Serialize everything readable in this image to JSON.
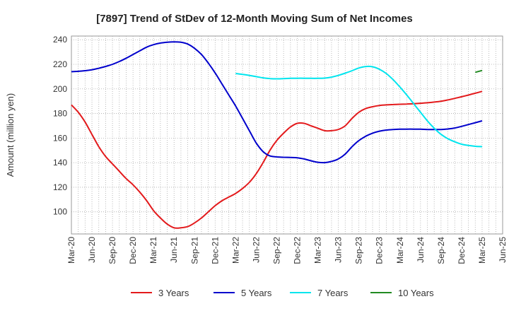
{
  "chart_data": {
    "type": "line",
    "title": "[7897]  Trend of StDev of 12-Month Moving Sum of Net Incomes",
    "xlabel": "",
    "ylabel": "Amount (million yen)",
    "ylim": [
      82,
      243
    ],
    "yticks": [
      100,
      120,
      140,
      160,
      180,
      200,
      220,
      240
    ],
    "xlim": [
      "2020-03",
      "2025-06"
    ],
    "xtick_labels": [
      "Mar-20",
      "Jun-20",
      "Sep-20",
      "Dec-20",
      "Mar-21",
      "Jun-21",
      "Sep-21",
      "Dec-21",
      "Mar-22",
      "Jun-22",
      "Sep-22",
      "Dec-22",
      "Mar-23",
      "Jun-23",
      "Sep-23",
      "Dec-23",
      "Mar-24",
      "Jun-24",
      "Sep-24",
      "Dec-24",
      "Mar-25",
      "Jun-25"
    ],
    "grid": true,
    "legend_position": "bottom",
    "series": [
      {
        "name": "3 Years",
        "color": "#e31a1c",
        "points": [
          [
            "2020-03",
            187
          ],
          [
            "2020-04",
            181
          ],
          [
            "2020-05",
            173
          ],
          [
            "2020-06",
            163
          ],
          [
            "2020-07",
            153
          ],
          [
            "2020-08",
            145
          ],
          [
            "2020-09",
            139
          ],
          [
            "2020-10",
            133
          ],
          [
            "2020-11",
            127
          ],
          [
            "2020-12",
            122
          ],
          [
            "2021-01",
            116
          ],
          [
            "2021-02",
            109
          ],
          [
            "2021-03",
            101
          ],
          [
            "2021-04",
            95
          ],
          [
            "2021-05",
            90
          ],
          [
            "2021-06",
            87
          ],
          [
            "2021-07",
            87
          ],
          [
            "2021-08",
            88
          ],
          [
            "2021-09",
            91
          ],
          [
            "2021-10",
            95
          ],
          [
            "2021-11",
            100
          ],
          [
            "2021-12",
            105
          ],
          [
            "2022-01",
            109
          ],
          [
            "2022-02",
            112
          ],
          [
            "2022-03",
            115
          ],
          [
            "2022-04",
            119
          ],
          [
            "2022-05",
            124
          ],
          [
            "2022-06",
            131
          ],
          [
            "2022-07",
            140
          ],
          [
            "2022-08",
            150
          ],
          [
            "2022-09",
            158
          ],
          [
            "2022-10",
            164
          ],
          [
            "2022-11",
            169
          ],
          [
            "2022-12",
            172
          ],
          [
            "2023-01",
            172
          ],
          [
            "2023-02",
            170
          ],
          [
            "2023-03",
            168
          ],
          [
            "2023-04",
            166
          ],
          [
            "2023-05",
            166
          ],
          [
            "2023-06",
            167
          ],
          [
            "2023-07",
            170
          ],
          [
            "2023-08",
            176
          ],
          [
            "2023-09",
            181
          ],
          [
            "2023-10",
            184
          ],
          [
            "2023-11",
            185.5
          ],
          [
            "2023-12",
            186.5
          ],
          [
            "2024-01",
            187
          ],
          [
            "2024-02",
            187.3
          ],
          [
            "2024-03",
            187.5
          ],
          [
            "2024-04",
            187.7
          ],
          [
            "2024-05",
            188
          ],
          [
            "2024-06",
            188.3
          ],
          [
            "2024-07",
            188.7
          ],
          [
            "2024-08",
            189.3
          ],
          [
            "2024-09",
            190
          ],
          [
            "2024-10",
            191
          ],
          [
            "2024-11",
            192.3
          ],
          [
            "2024-12",
            193.6
          ],
          [
            "2025-01",
            195
          ],
          [
            "2025-02",
            196.5
          ],
          [
            "2025-03",
            198
          ]
        ]
      },
      {
        "name": "5 Years",
        "color": "#0000cc",
        "points": [
          [
            "2020-03",
            214
          ],
          [
            "2020-04",
            214.3
          ],
          [
            "2020-05",
            214.8
          ],
          [
            "2020-06",
            215.6
          ],
          [
            "2020-07",
            216.8
          ],
          [
            "2020-08",
            218.3
          ],
          [
            "2020-09",
            220
          ],
          [
            "2020-10",
            222.3
          ],
          [
            "2020-11",
            225
          ],
          [
            "2020-12",
            228
          ],
          [
            "2021-01",
            231
          ],
          [
            "2021-02",
            234
          ],
          [
            "2021-03",
            236
          ],
          [
            "2021-04",
            237.3
          ],
          [
            "2021-05",
            238
          ],
          [
            "2021-06",
            238.3
          ],
          [
            "2021-07",
            238
          ],
          [
            "2021-08",
            236.5
          ],
          [
            "2021-09",
            233
          ],
          [
            "2021-10",
            228
          ],
          [
            "2021-11",
            221
          ],
          [
            "2021-12",
            213
          ],
          [
            "2022-01",
            204
          ],
          [
            "2022-02",
            195
          ],
          [
            "2022-03",
            186
          ],
          [
            "2022-04",
            176
          ],
          [
            "2022-05",
            166
          ],
          [
            "2022-06",
            156
          ],
          [
            "2022-07",
            149
          ],
          [
            "2022-08",
            145.5
          ],
          [
            "2022-09",
            144.7
          ],
          [
            "2022-10",
            144.4
          ],
          [
            "2022-11",
            144.2
          ],
          [
            "2022-12",
            144
          ],
          [
            "2023-01",
            143
          ],
          [
            "2023-02",
            141.5
          ],
          [
            "2023-03",
            140.3
          ],
          [
            "2023-04",
            140
          ],
          [
            "2023-05",
            141
          ],
          [
            "2023-06",
            143
          ],
          [
            "2023-07",
            147
          ],
          [
            "2023-08",
            153
          ],
          [
            "2023-09",
            158
          ],
          [
            "2023-10",
            161.5
          ],
          [
            "2023-11",
            164
          ],
          [
            "2023-12",
            165.6
          ],
          [
            "2024-01",
            166.5
          ],
          [
            "2024-02",
            167
          ],
          [
            "2024-03",
            167.2
          ],
          [
            "2024-04",
            167.3
          ],
          [
            "2024-05",
            167.3
          ],
          [
            "2024-06",
            167.2
          ],
          [
            "2024-07",
            167
          ],
          [
            "2024-08",
            167
          ],
          [
            "2024-09",
            167
          ],
          [
            "2024-10",
            167.4
          ],
          [
            "2024-11",
            168.2
          ],
          [
            "2024-12",
            169.5
          ],
          [
            "2025-01",
            171
          ],
          [
            "2025-02",
            172.5
          ],
          [
            "2025-03",
            174
          ]
        ]
      },
      {
        "name": "7 Years",
        "color": "#00e5ee",
        "points": [
          [
            "2022-03",
            212.5
          ],
          [
            "2022-04",
            211.8
          ],
          [
            "2022-05",
            211
          ],
          [
            "2022-06",
            210
          ],
          [
            "2022-07",
            209
          ],
          [
            "2022-08",
            208.4
          ],
          [
            "2022-09",
            208.2
          ],
          [
            "2022-10",
            208.4
          ],
          [
            "2022-11",
            208.6
          ],
          [
            "2022-12",
            208.7
          ],
          [
            "2023-01",
            208.7
          ],
          [
            "2023-02",
            208.6
          ],
          [
            "2023-03",
            208.6
          ],
          [
            "2023-04",
            208.8
          ],
          [
            "2023-05",
            209.6
          ],
          [
            "2023-06",
            211
          ],
          [
            "2023-07",
            212.8
          ],
          [
            "2023-08",
            214.8
          ],
          [
            "2023-09",
            217
          ],
          [
            "2023-10",
            218.2
          ],
          [
            "2023-11",
            218
          ],
          [
            "2023-12",
            216
          ],
          [
            "2024-01",
            212.5
          ],
          [
            "2024-02",
            207.5
          ],
          [
            "2024-03",
            201.5
          ],
          [
            "2024-04",
            195
          ],
          [
            "2024-05",
            188
          ],
          [
            "2024-06",
            181
          ],
          [
            "2024-07",
            174
          ],
          [
            "2024-08",
            168
          ],
          [
            "2024-09",
            163
          ],
          [
            "2024-10",
            159.5
          ],
          [
            "2024-11",
            157
          ],
          [
            "2024-12",
            155
          ],
          [
            "2025-01",
            154
          ],
          [
            "2025-02",
            153.3
          ],
          [
            "2025-03",
            153
          ]
        ]
      },
      {
        "name": "10 Years",
        "color": "#228b22",
        "points": [
          [
            "2025-02",
            213.5
          ],
          [
            "2025-03",
            215
          ]
        ]
      }
    ]
  }
}
